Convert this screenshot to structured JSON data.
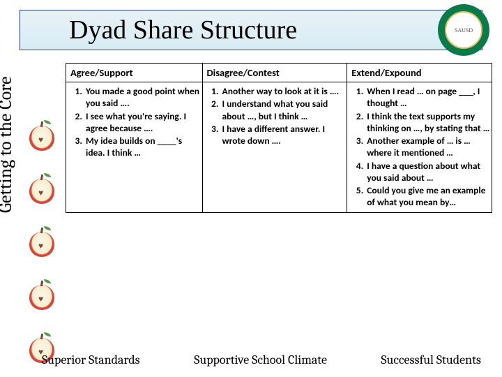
{
  "title": "Dyad Share Structure",
  "seal_text": "SAUSD",
  "sidebar_label": "Getting to the Core",
  "table": {
    "columns": [
      "Agree/Support",
      "Disagree/Contest",
      "Extend/Expound"
    ],
    "col1": [
      "You made a good point when you said ….",
      "I see what you're saying. I agree because ….",
      "My idea builds on ____'s idea. I think …"
    ],
    "col2": [
      "Another way to look at it is ….",
      "I understand what you said about …, but I think …",
      "I have a different answer. I wrote down …."
    ],
    "col3": [
      "When I read … on page ___, I thought …",
      "I think the text supports my thinking on …, by stating that …",
      "Another example of … is … where it mentioned …",
      "I have a question about what you said about …",
      "Could you give me an example of what you mean by…"
    ],
    "col_widths": [
      "32%",
      "34%",
      "34%"
    ]
  },
  "footer": [
    "Superior Standards",
    "Supportive School Climate",
    "Successful Students"
  ],
  "colors": {
    "title_bg_top": "#e8f2f7",
    "title_bg_bottom": "#d8ecf4",
    "title_border": "#2a3a8a",
    "seal_green": "#0a7a4a",
    "seal_gold": "#d4c05a",
    "apple_red": "#c83a2a",
    "apple_flesh": "#f7eed0"
  }
}
